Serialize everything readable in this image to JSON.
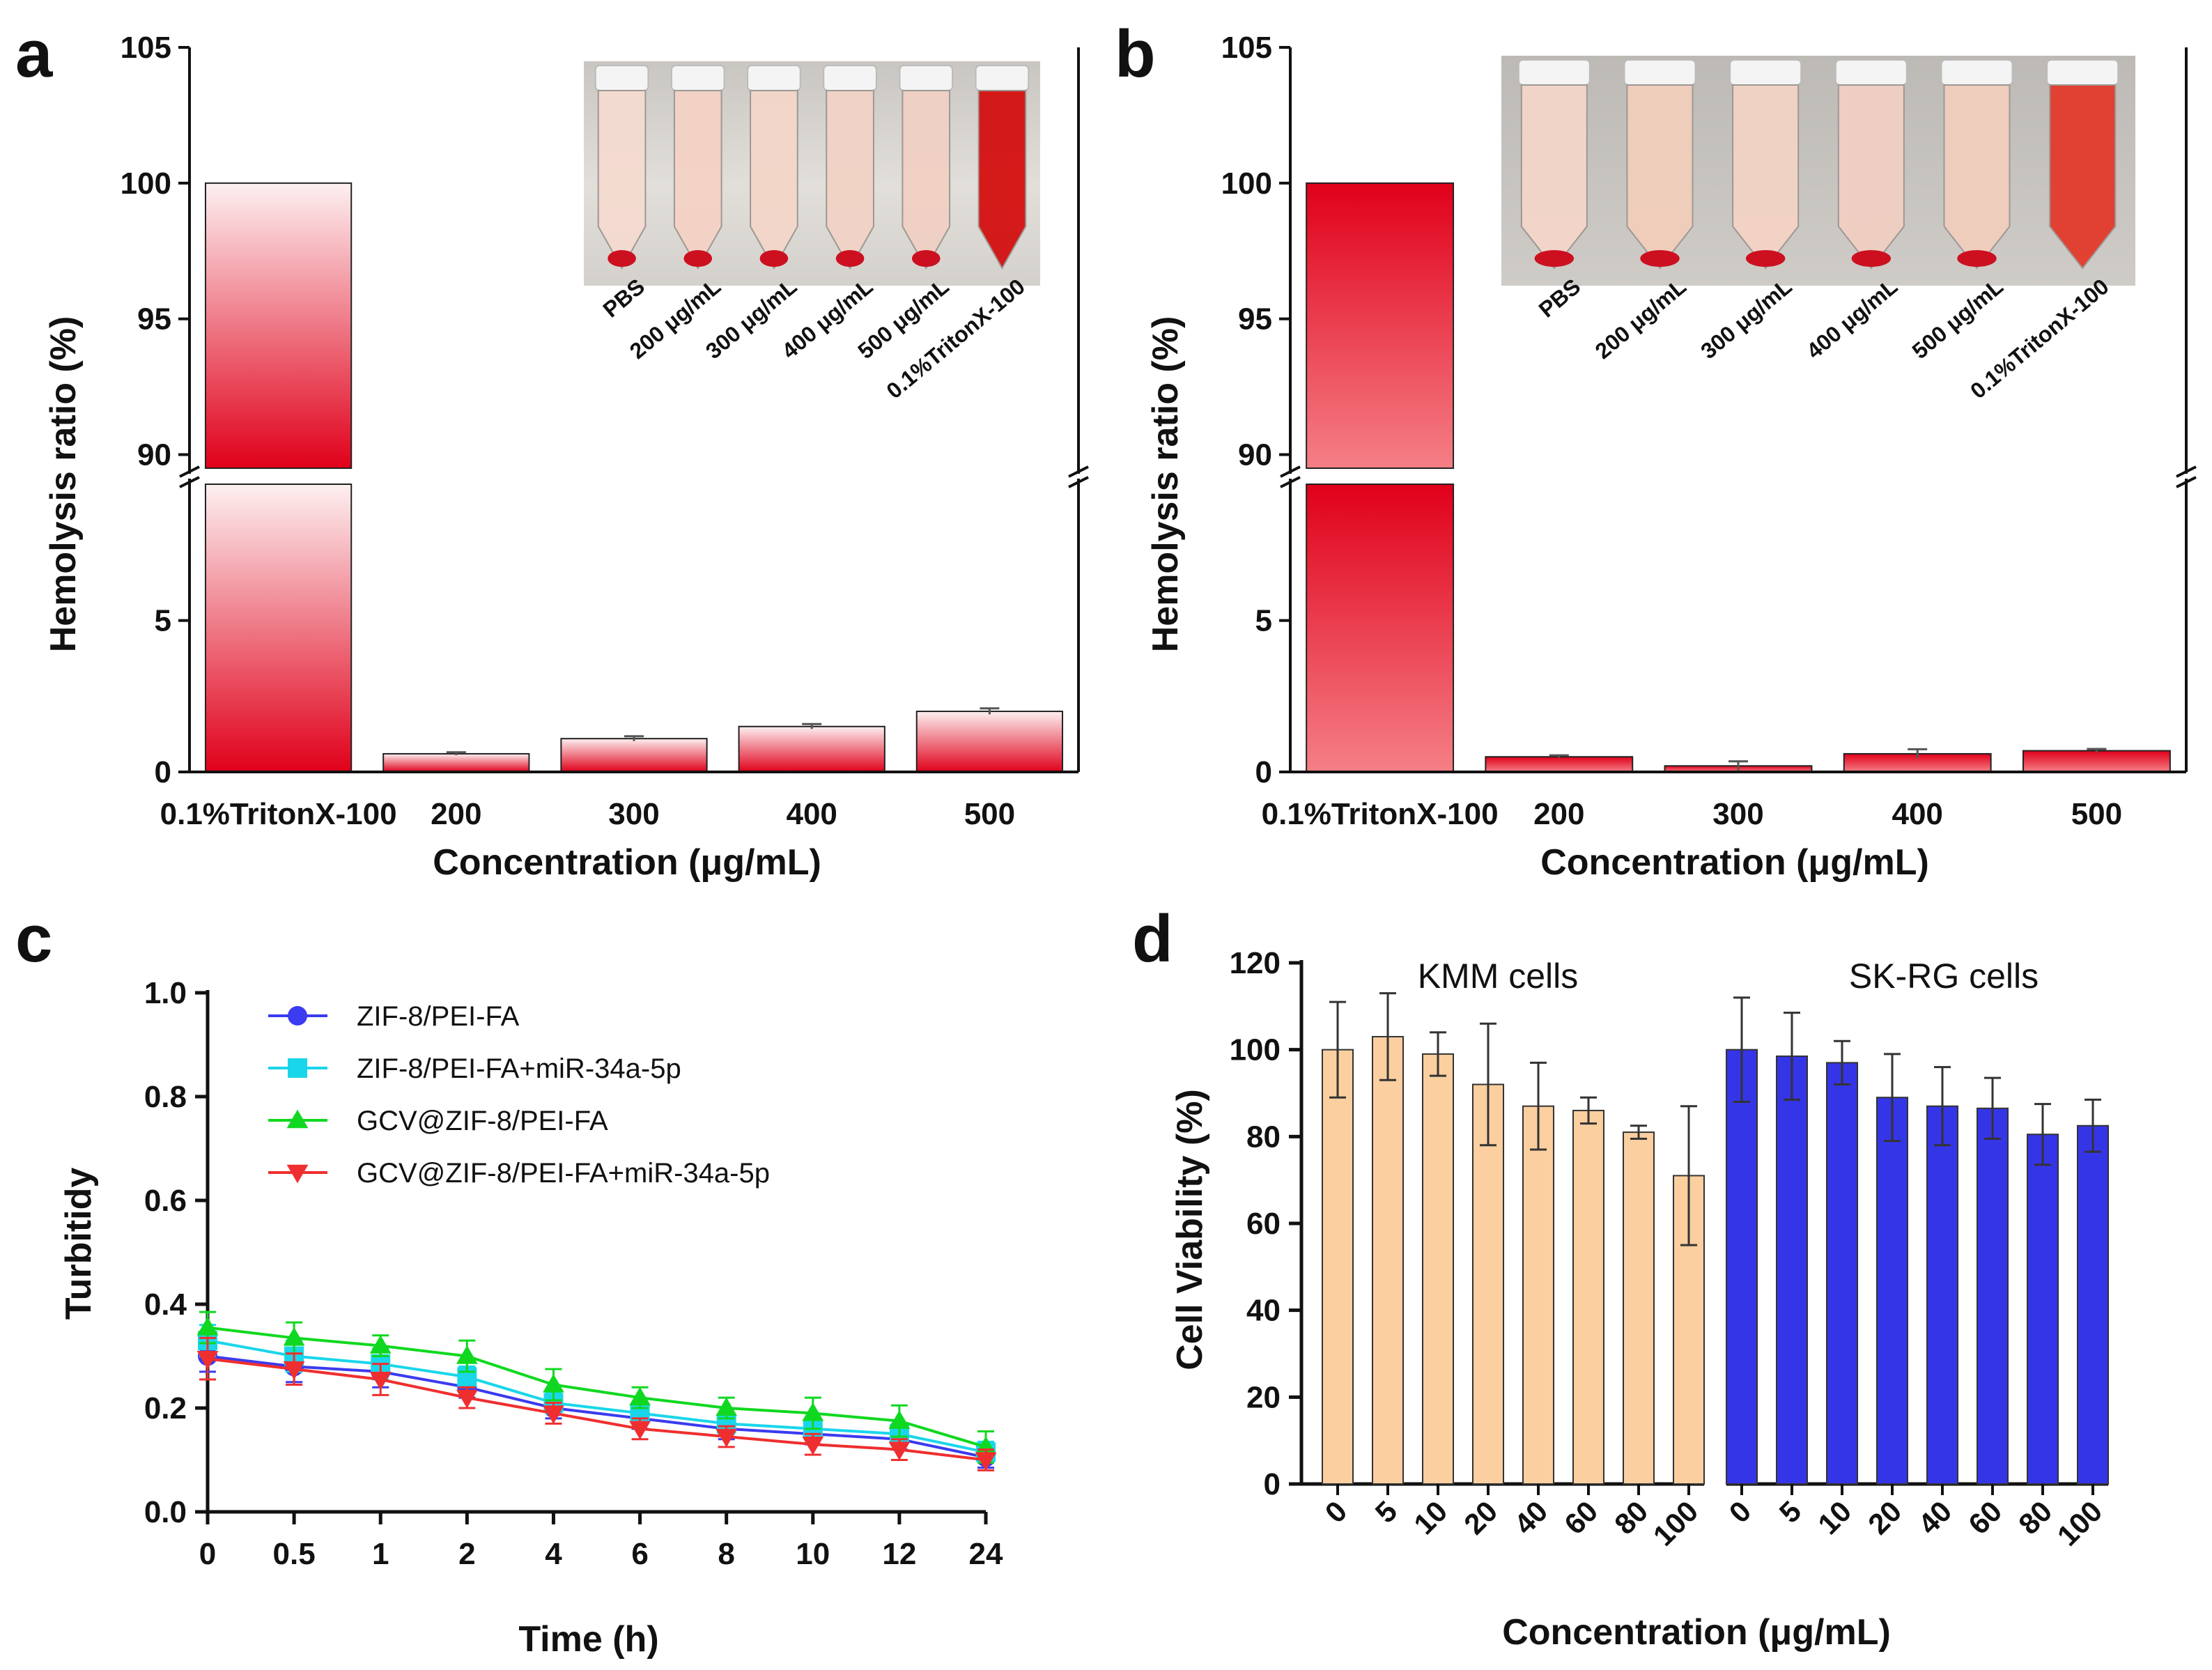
{
  "panels": {
    "a": "a",
    "b": "b",
    "c": "c",
    "d": "d"
  },
  "colors": {
    "red": "#e0001a",
    "pink_light": "#fbe2e4",
    "peach": "#fbcf9f",
    "blue_bar": "#3535e8",
    "c_s1": "#3b3bef",
    "c_s2": "#1ad6ea",
    "c_s3": "#10d820",
    "c_s4": "#ef2f2f"
  },
  "chart_data": [
    {
      "id": "a",
      "type": "bar",
      "title": "",
      "ylabel": "Hemolysis ratio (%)",
      "xlabel": "Concentration (μg/mL)",
      "categories": [
        "0.1%TritonX-100",
        "200",
        "300",
        "400",
        "500"
      ],
      "values": [
        100,
        0.6,
        1.1,
        1.5,
        2.0
      ],
      "errors": [
        0,
        0.05,
        0.08,
        0.08,
        0.1
      ],
      "y_axis_break": {
        "lower": [
          0,
          9.5
        ],
        "upper": [
          89.5,
          105
        ]
      },
      "yticks_lower": [
        "0",
        "5"
      ],
      "yticks_upper": [
        "90",
        "95",
        "100",
        "105"
      ],
      "inset_labels": [
        "PBS",
        "200 μg/mL",
        "300 μg/mL",
        "400 μg/mL",
        "500 μg/mL",
        "0.1%TritonX-100"
      ],
      "inset_tube_colors": [
        "#f4dad0",
        "#f3d2c4",
        "#f2d6c8",
        "#f1d2c5",
        "#f0d0c3",
        "#d31010"
      ],
      "bar_style": "gradient red-bottom to light-top"
    },
    {
      "id": "b",
      "type": "bar",
      "title": "",
      "ylabel": "Hemolysis ratio (%)",
      "xlabel": "Concentration (μg/mL)",
      "categories": [
        "0.1%TritonX-100",
        "200",
        "300",
        "400",
        "500"
      ],
      "values": [
        100,
        0.5,
        0.2,
        0.6,
        0.7
      ],
      "errors": [
        0,
        0.05,
        0.15,
        0.15,
        0.06
      ],
      "y_axis_break": {
        "lower": [
          0,
          9.5
        ],
        "upper": [
          89.5,
          105
        ]
      },
      "yticks_lower": [
        "0",
        "5"
      ],
      "yticks_upper": [
        "90",
        "95",
        "100",
        "105"
      ],
      "inset_labels": [
        "PBS",
        "200 μg/mL",
        "300 μg/mL",
        "400 μg/mL",
        "500 μg/mL",
        "0.1%TritonX-100"
      ],
      "inset_tube_colors": [
        "#f3d5c8",
        "#f1cdbb",
        "#f2d3c5",
        "#f0cfc2",
        "#f0cdbd",
        "#e23a2a"
      ],
      "bar_style": "gradient red-top to light-bottom"
    },
    {
      "id": "c",
      "type": "line",
      "title": "",
      "xlabel": "Time (h)",
      "ylabel": "Turbitidy",
      "x": [
        "0",
        "0.5",
        "1",
        "2",
        "4",
        "6",
        "8",
        "10",
        "12",
        "24"
      ],
      "ylim": [
        0,
        1.0
      ],
      "yticks": [
        "0.0",
        "0.2",
        "0.4",
        "0.6",
        "0.8",
        "1.0"
      ],
      "legend_position": "top",
      "series": [
        {
          "name": "ZIF-8/PEI-FA",
          "marker": "circle",
          "values": [
            0.3,
            0.28,
            0.27,
            0.24,
            0.2,
            0.18,
            0.16,
            0.15,
            0.14,
            0.105
          ],
          "errors": [
            0.03,
            0.03,
            0.03,
            0.02,
            0.02,
            0.02,
            0.02,
            0.02,
            0.02,
            0.02
          ]
        },
        {
          "name": "ZIF-8/PEI-FA+miR-34a-5p",
          "marker": "square",
          "values": [
            0.33,
            0.3,
            0.285,
            0.26,
            0.21,
            0.19,
            0.17,
            0.16,
            0.15,
            0.115
          ],
          "errors": [
            0.03,
            0.03,
            0.03,
            0.02,
            0.02,
            0.02,
            0.02,
            0.02,
            0.02,
            0.02
          ]
        },
        {
          "name": "GCV@ZIF-8/PEI-FA",
          "marker": "triangle-up",
          "values": [
            0.355,
            0.335,
            0.32,
            0.3,
            0.245,
            0.22,
            0.2,
            0.19,
            0.175,
            0.125
          ],
          "errors": [
            0.03,
            0.03,
            0.02,
            0.03,
            0.03,
            0.02,
            0.02,
            0.03,
            0.03,
            0.03
          ]
        },
        {
          "name": "GCV@ZIF-8/PEI-FA+miR-34a-5p",
          "marker": "triangle-down",
          "values": [
            0.295,
            0.275,
            0.255,
            0.22,
            0.19,
            0.16,
            0.145,
            0.13,
            0.12,
            0.1
          ],
          "errors": [
            0.04,
            0.03,
            0.03,
            0.02,
            0.02,
            0.02,
            0.02,
            0.02,
            0.02,
            0.02
          ]
        }
      ]
    },
    {
      "id": "d",
      "type": "bar",
      "title": "",
      "xlabel": "Concentration (μg/mL)",
      "ylabel": "Cell Viability (%)",
      "ylim": [
        0,
        120
      ],
      "yticks": [
        "0",
        "20",
        "40",
        "60",
        "80",
        "100",
        "120"
      ],
      "groups": [
        {
          "name": "KMM cells",
          "categories": [
            "0",
            "5",
            "10",
            "20",
            "40",
            "60",
            "80",
            "100"
          ],
          "values": [
            100,
            103,
            99,
            92,
            87,
            86,
            81,
            71
          ],
          "errors": [
            11,
            10,
            5,
            14,
            10,
            3,
            1.5,
            16
          ]
        },
        {
          "name": "SK-RG cells",
          "categories": [
            "0",
            "5",
            "10",
            "20",
            "40",
            "60",
            "80",
            "100"
          ],
          "values": [
            100,
            98.5,
            97,
            89,
            87,
            86.5,
            80.5,
            82.5
          ],
          "errors": [
            12,
            10,
            5,
            10,
            9,
            7,
            7,
            6
          ]
        }
      ]
    }
  ]
}
